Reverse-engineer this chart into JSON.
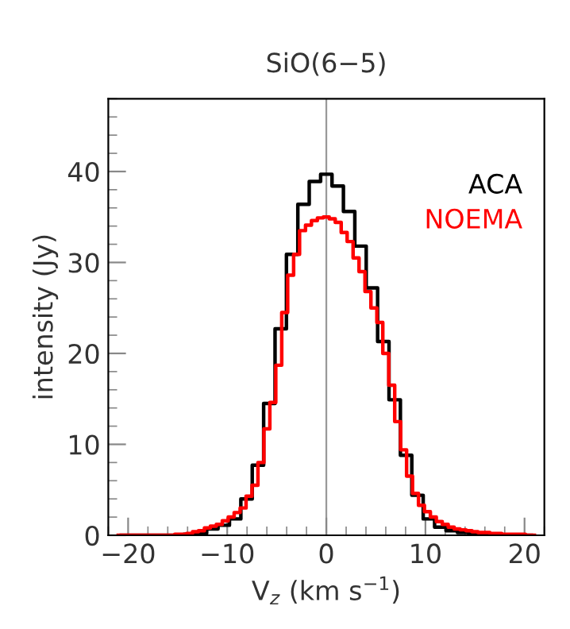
{
  "chart_data": {
    "type": "step",
    "title": "SiO(6−5)",
    "xlabel": "V$_{z}$ (km s$^{−1}$)",
    "ylabel": "intensity (Jy)",
    "xlim": [
      -22,
      22
    ],
    "ylim": [
      0,
      48
    ],
    "xticks": [
      {
        "value": -20,
        "label": "−20"
      },
      {
        "value": -10,
        "label": "−10"
      },
      0,
      10,
      20
    ],
    "yticks": [
      0,
      10,
      20,
      30,
      40
    ],
    "grid": false,
    "marker": "none",
    "ref_lines": [
      {
        "axis": "x",
        "value": 0,
        "color": "#999999"
      }
    ],
    "series": [
      {
        "name": "ACA",
        "color": "#000000",
        "x": [
          -20.7,
          -19.55,
          -18.4,
          -17.25,
          -16.1,
          -14.95,
          -13.8,
          -12.65,
          -11.5,
          -10.35,
          -9.2,
          -8.05,
          -6.9,
          -5.75,
          -4.6,
          -3.45,
          -2.3,
          -1.15,
          0,
          1.15,
          2.3,
          3.45,
          4.6,
          5.75,
          6.9,
          8.05,
          9.2,
          10.35,
          11.5,
          12.65,
          13.8,
          14.95,
          16.1,
          17.25,
          18.4,
          19.55,
          20.7
        ],
        "values": [
          0,
          0,
          0,
          0,
          0,
          0,
          0.1,
          0.2,
          0.7,
          1.1,
          1.8,
          4.0,
          7.7,
          14.5,
          22.7,
          30.9,
          36.4,
          38.9,
          39.7,
          38.4,
          35.6,
          31.8,
          27.2,
          21.3,
          14.9,
          8.8,
          4.4,
          1.8,
          0.9,
          0.5,
          0.3,
          0.1,
          0,
          0,
          0,
          0,
          0
        ]
      },
      {
        "name": "NOEMA",
        "color": "#ff0000",
        "x": [
          -21.0,
          -20.4,
          -19.8,
          -19.2,
          -18.6,
          -18.0,
          -17.4,
          -16.8,
          -16.2,
          -15.6,
          -15.0,
          -14.4,
          -13.8,
          -13.2,
          -12.6,
          -12.0,
          -11.4,
          -10.8,
          -10.2,
          -9.6,
          -9.0,
          -8.4,
          -7.8,
          -7.2,
          -6.6,
          -6.0,
          -5.4,
          -4.8,
          -4.2,
          -3.6,
          -3.0,
          -2.4,
          -1.8,
          -1.2,
          -0.6,
          0,
          0.6,
          1.2,
          1.8,
          2.4,
          3.0,
          3.6,
          4.2,
          4.8,
          5.4,
          6.0,
          6.6,
          7.2,
          7.8,
          8.4,
          9.0,
          9.6,
          10.2,
          10.8,
          11.4,
          12.0,
          12.6,
          13.2,
          13.8,
          14.4,
          15.0,
          15.6,
          16.2,
          16.8,
          17.4,
          18.0,
          18.6,
          19.2,
          19.8,
          20.4,
          21.0
        ],
        "values": [
          0,
          0,
          0,
          0,
          0,
          0,
          0,
          0,
          0,
          0,
          0.1,
          0.1,
          0.2,
          0.4,
          0.5,
          0.8,
          1.0,
          1.2,
          1.6,
          2.0,
          2.5,
          3.0,
          4.3,
          5.5,
          8.0,
          11.7,
          14.6,
          18.7,
          24.5,
          28.6,
          30.9,
          33.5,
          34.1,
          34.6,
          34.9,
          35.0,
          34.8,
          34.4,
          33.3,
          32.3,
          30.5,
          29.0,
          26.8,
          25.0,
          23.4,
          20.0,
          16.5,
          12.5,
          9.4,
          6.5,
          4.6,
          3.3,
          2.6,
          2.0,
          1.5,
          1.2,
          0.9,
          0.7,
          0.6,
          0.5,
          0.4,
          0.3,
          0.3,
          0.2,
          0.2,
          0.1,
          0.1,
          0.1,
          0.1,
          0,
          0
        ]
      }
    ]
  }
}
